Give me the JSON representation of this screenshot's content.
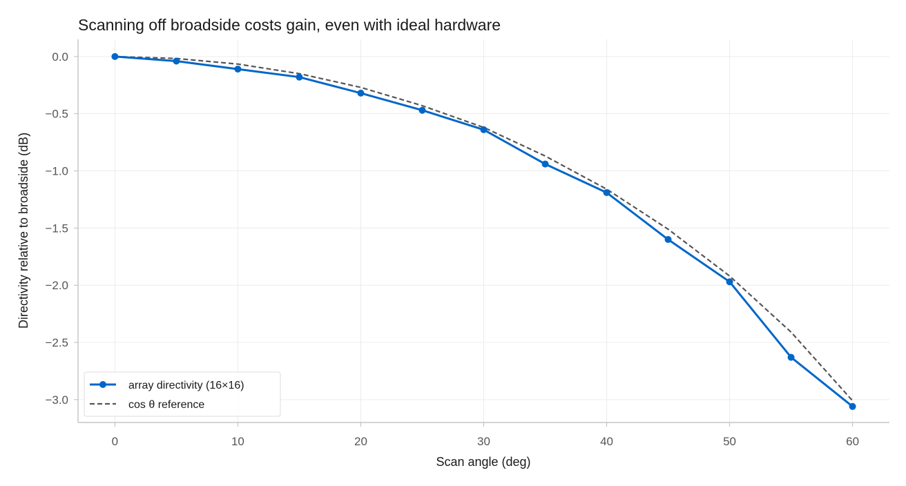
{
  "chart_data": {
    "type": "line",
    "title": "Scanning off broadside costs gain, even with ideal hardware",
    "xlabel": "Scan angle (deg)",
    "ylabel": "Directivity relative to broadside (dB)",
    "xlim": [
      -3,
      63
    ],
    "ylim": [
      -3.2,
      0.15
    ],
    "xticks": [
      0,
      10,
      20,
      30,
      40,
      50,
      60
    ],
    "yticks": [
      0.0,
      -0.5,
      -1.0,
      -1.5,
      -2.0,
      -2.5,
      -3.0
    ],
    "xtick_labels": [
      "0",
      "10",
      "20",
      "30",
      "40",
      "50",
      "60"
    ],
    "ytick_labels": [
      "0.0",
      "−0.5",
      "−1.0",
      "−1.5",
      "−2.0",
      "−2.5",
      "−3.0"
    ],
    "grid": true,
    "legend_position": "lower-left",
    "x": [
      0,
      5,
      10,
      15,
      20,
      25,
      30,
      35,
      40,
      45,
      50,
      55,
      60
    ],
    "series": [
      {
        "name": "array directivity (16×16)",
        "style": "solid-markers",
        "color": "#0066c8",
        "values": [
          0.0,
          -0.04,
          -0.11,
          -0.18,
          -0.32,
          -0.47,
          -0.64,
          -0.94,
          -1.19,
          -1.6,
          -1.97,
          -2.63,
          -3.06
        ]
      },
      {
        "name": "cos θ reference",
        "style": "dashed",
        "color": "#555555",
        "values": [
          0.0,
          -0.017,
          -0.066,
          -0.15,
          -0.27,
          -0.43,
          -0.62,
          -0.87,
          -1.16,
          -1.51,
          -1.92,
          -2.41,
          -3.01
        ]
      }
    ]
  }
}
